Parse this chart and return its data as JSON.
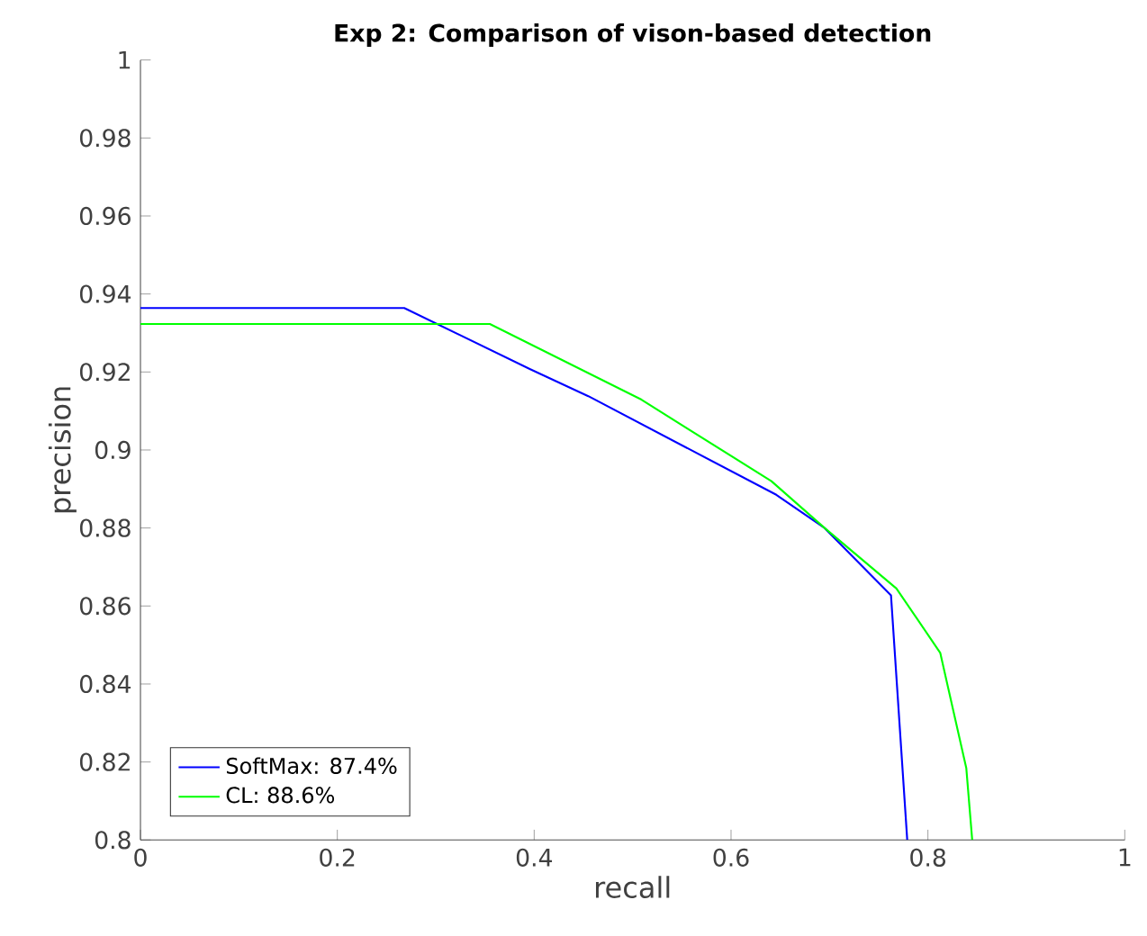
{
  "chart_data": {
    "type": "line",
    "title": "Exp 2: Comparison of vison-based detection",
    "xlabel": "recall",
    "ylabel": "precision",
    "series": [
      {
        "name": "SoftMax: 87.4%",
        "color": "#0000ff",
        "x": [
          0,
          0.268,
          0.396,
          0.455,
          0.646,
          0.695,
          0.7625,
          0.779
        ],
        "values": [
          0.9364,
          0.9364,
          0.9207,
          0.9138,
          0.8885,
          0.88,
          0.8627,
          0.8
        ]
      },
      {
        "name": "CL: 88.6%",
        "color": "#00ff00",
        "x": [
          0,
          0.355,
          0.509,
          0.641,
          0.695,
          0.768,
          0.8125,
          0.839,
          0.845
        ],
        "values": [
          0.9323,
          0.9323,
          0.9129,
          0.892,
          0.88,
          0.8645,
          0.848,
          0.8184,
          0.8
        ]
      }
    ],
    "xlim": [
      0,
      1
    ],
    "ylim": [
      0.8,
      1
    ],
    "xticks": [
      0,
      0.2,
      0.4,
      0.6,
      0.8,
      1
    ],
    "yticks": [
      0.8,
      0.82,
      0.84,
      0.86,
      0.88,
      0.9,
      0.92,
      0.94,
      0.96,
      0.98,
      1
    ],
    "grid": false,
    "legend": "bottom left",
    "line_style": "solid",
    "marker": "none"
  }
}
